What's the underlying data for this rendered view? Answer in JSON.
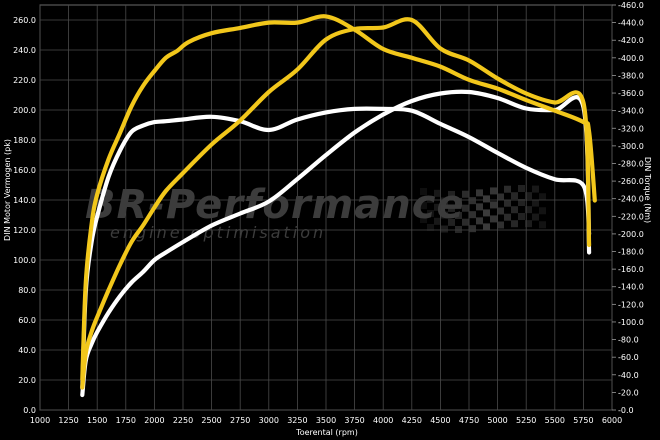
{
  "chart_data": {
    "type": "line",
    "xlabel": "Toerental (rpm)",
    "ylabel_left": "DIN Motor Vermogen (pk)",
    "ylabel_right": "DIN Torque (Nm)",
    "xlim": [
      1000,
      6000
    ],
    "ylim_left": [
      0,
      270
    ],
    "ylim_right": [
      0,
      460
    ],
    "x_ticks": [
      "1000",
      "1250",
      "1500",
      "1750",
      "2000",
      "2250",
      "2500",
      "2750",
      "3000",
      "3250",
      "3500",
      "3750",
      "4000",
      "4250",
      "4500",
      "4750",
      "5000",
      "5250",
      "5500",
      "5750",
      "6000"
    ],
    "y_left_ticks": [
      "0.0",
      "20.0",
      "40.0",
      "60.0",
      "80.0",
      "100.0",
      "120.0",
      "140.0",
      "160.0",
      "180.0",
      "200.0",
      "220.0",
      "240.0",
      "260.0"
    ],
    "y_right_ticks": [
      "0.0",
      "20.0",
      "40.0",
      "60.0",
      "80.0",
      "100.0",
      "120.0",
      "140.0",
      "160.0",
      "180.0",
      "200.0",
      "220.0",
      "240.0",
      "260.0",
      "280.0",
      "300.0",
      "320.0",
      "340.0",
      "360.0",
      "380.0",
      "400.0",
      "420.0",
      "440.0",
      "460.0"
    ],
    "grid": true,
    "watermark": {
      "line1": "BR-Performance",
      "line2": "engine optimisation"
    },
    "colors": {
      "tuned": "#f2c71b",
      "stock": "#ffffff",
      "grid": "#4a4a4a",
      "background": "#000000"
    },
    "series": [
      {
        "key": "power_tuned",
        "axis": "left",
        "color": "#f2c71b",
        "x": [
          1370,
          1400,
          1450,
          1500,
          1600,
          1700,
          1800,
          1900,
          2000,
          2100,
          2250,
          2500,
          2750,
          3000,
          3250,
          3500,
          3750,
          4000,
          4250,
          4500,
          4750,
          5000,
          5250,
          5500,
          5750,
          5800
        ],
        "y": [
          15,
          38,
          52,
          62,
          80,
          97,
          112,
          123,
          135,
          146,
          158,
          177,
          193,
          212,
          227,
          247,
          254,
          255,
          260,
          241,
          233,
          221,
          211,
          205,
          205,
          110
        ]
      },
      {
        "key": "power_stock",
        "axis": "left",
        "color": "#ffffff",
        "x": [
          1370,
          1400,
          1450,
          1500,
          1600,
          1700,
          1800,
          1900,
          2000,
          2100,
          2250,
          2500,
          2750,
          3000,
          3250,
          3500,
          3750,
          4000,
          4250,
          4500,
          4750,
          5000,
          5250,
          5500,
          5750,
          5800
        ],
        "y": [
          10,
          33,
          44,
          52,
          65,
          76,
          85,
          92,
          100,
          105,
          112,
          123,
          131,
          139,
          154,
          170,
          185,
          197,
          206,
          211,
          212,
          208,
          201,
          200,
          202,
          105
        ]
      },
      {
        "key": "torque_tuned",
        "axis": "right",
        "color": "#f2c71b",
        "x": [
          1370,
          1400,
          1450,
          1500,
          1600,
          1700,
          1800,
          1900,
          2000,
          2100,
          2200,
          2300,
          2500,
          2750,
          3000,
          3250,
          3500,
          3750,
          4000,
          4250,
          4500,
          4750,
          5000,
          5250,
          5500,
          5750,
          5800,
          5850
        ],
        "y": [
          35,
          145,
          210,
          245,
          285,
          315,
          345,
          368,
          385,
          400,
          408,
          418,
          428,
          434,
          440,
          440,
          447,
          432,
          410,
          400,
          390,
          375,
          365,
          352,
          340,
          327,
          316,
          238
        ]
      },
      {
        "key": "torque_stock",
        "axis": "right",
        "color": "#ffffff",
        "x": [
          1370,
          1400,
          1450,
          1500,
          1600,
          1700,
          1800,
          1900,
          2000,
          2100,
          2250,
          2500,
          2750,
          3000,
          3250,
          3500,
          3750,
          4000,
          4250,
          4500,
          4750,
          5000,
          5250,
          5500,
          5750,
          5800
        ],
        "y": [
          25,
          135,
          190,
          220,
          265,
          295,
          316,
          323,
          327,
          328,
          330,
          333,
          328,
          318,
          330,
          338,
          342,
          342,
          340,
          325,
          310,
          292,
          275,
          262,
          255,
          200
        ]
      }
    ]
  }
}
